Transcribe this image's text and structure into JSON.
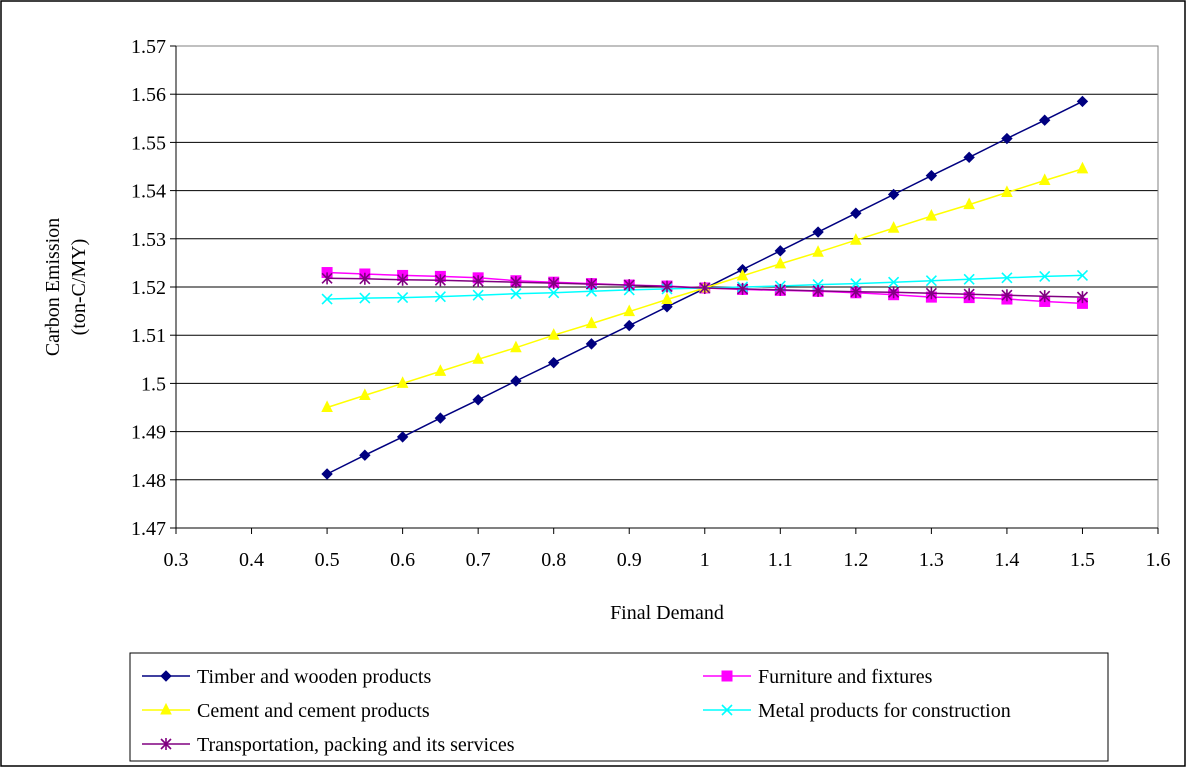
{
  "chart_data": {
    "type": "line",
    "title": "",
    "xlabel": "Final Demand",
    "ylabel_lines": [
      "Carbon Emission",
      "(ton-C/MY)"
    ],
    "xlim": [
      0.3,
      1.6
    ],
    "ylim": [
      1.47,
      1.57
    ],
    "x_ticks": [
      "0.3",
      "0.4",
      "0.5",
      "0.6",
      "0.7",
      "0.8",
      "0.9",
      "1",
      "1.1",
      "1.2",
      "1.3",
      "1.4",
      "1.5",
      "1.6"
    ],
    "y_ticks": [
      "1.47",
      "1.48",
      "1.49",
      "1.5",
      "1.51",
      "1.52",
      "1.53",
      "1.54",
      "1.55",
      "1.56",
      "1.57"
    ],
    "grid": "horizontal",
    "legend_position": "bottom",
    "x": [
      0.5,
      0.55,
      0.6,
      0.65,
      0.7,
      0.75,
      0.8,
      0.85,
      0.9,
      0.95,
      1.0,
      1.05,
      1.1,
      1.15,
      1.2,
      1.25,
      1.3,
      1.35,
      1.4,
      1.45,
      1.5
    ],
    "series": [
      {
        "name": "Timber and wooden products",
        "color": "#000080",
        "marker": "diamond",
        "values": [
          1.4812,
          1.4851,
          1.4889,
          1.4928,
          1.4966,
          1.5005,
          1.5043,
          1.5082,
          1.512,
          1.5159,
          1.5197,
          1.5236,
          1.5275,
          1.5314,
          1.5353,
          1.5392,
          1.5431,
          1.5469,
          1.5508,
          1.5546,
          1.5585
        ]
      },
      {
        "name": "Furniture and fixtures",
        "color": "#FF00FF",
        "marker": "square",
        "values": [
          1.523,
          1.5227,
          1.5224,
          1.5222,
          1.5219,
          1.5213,
          1.521,
          1.5207,
          1.5204,
          1.5202,
          1.5198,
          1.5195,
          1.5193,
          1.5191,
          1.5188,
          1.5184,
          1.5179,
          1.5178,
          1.5175,
          1.517,
          1.5166
        ]
      },
      {
        "name": "Cement and cement products",
        "color": "#FFFF00",
        "marker": "triangle",
        "values": [
          1.495,
          1.4975,
          1.5,
          1.5025,
          1.505,
          1.5074,
          1.51,
          1.5124,
          1.5149,
          1.5174,
          1.5198,
          1.5223,
          1.5248,
          1.5272,
          1.5297,
          1.5322,
          1.5347,
          1.5371,
          1.5396,
          1.5421,
          1.5445
        ]
      },
      {
        "name": "Metal products for construction",
        "color": "#00FFFF",
        "marker": "x",
        "values": [
          1.5175,
          1.5177,
          1.5178,
          1.518,
          1.5183,
          1.5186,
          1.5188,
          1.5191,
          1.5194,
          1.5196,
          1.5198,
          1.52,
          1.5202,
          1.5205,
          1.5207,
          1.521,
          1.5213,
          1.5216,
          1.5219,
          1.5222,
          1.5224
        ]
      },
      {
        "name": "Transportation, packing and its services",
        "color": "#800080",
        "marker": "star",
        "values": [
          1.5218,
          1.5217,
          1.5215,
          1.5214,
          1.5212,
          1.521,
          1.5208,
          1.5206,
          1.5204,
          1.5201,
          1.5198,
          1.5196,
          1.5194,
          1.5192,
          1.519,
          1.5189,
          1.5187,
          1.5185,
          1.5183,
          1.5181,
          1.5179
        ]
      }
    ]
  }
}
